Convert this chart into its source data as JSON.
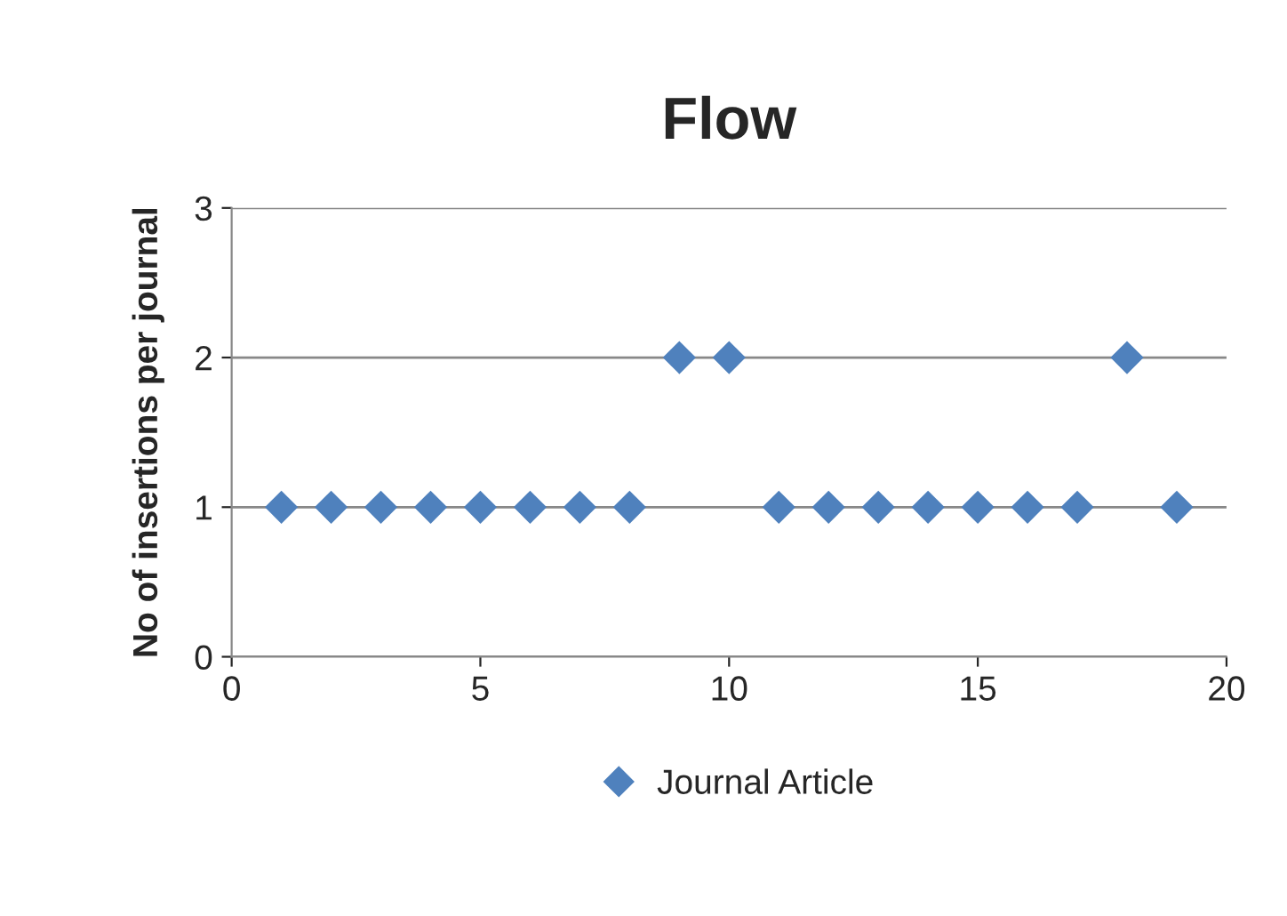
{
  "chart_data": {
    "type": "scatter",
    "title": "Flow",
    "ylabel": "No of insertions per journal",
    "x": [
      1,
      2,
      3,
      4,
      5,
      6,
      7,
      8,
      9,
      10,
      11,
      12,
      13,
      14,
      15,
      16,
      17,
      18,
      19
    ],
    "series": [
      {
        "name": "Journal Article",
        "color": "#4f81bd",
        "values": [
          1,
          1,
          1,
          1,
          1,
          1,
          1,
          1,
          2,
          2,
          1,
          1,
          1,
          1,
          1,
          1,
          1,
          2,
          1
        ]
      }
    ],
    "xlim": [
      0,
      20
    ],
    "xticks": [
      0,
      5,
      10,
      15,
      20
    ],
    "ylim": [
      0,
      3
    ],
    "yticks": [
      0,
      1,
      2,
      3
    ],
    "grid": "y",
    "legend": "bottom",
    "marker": "diamond"
  }
}
